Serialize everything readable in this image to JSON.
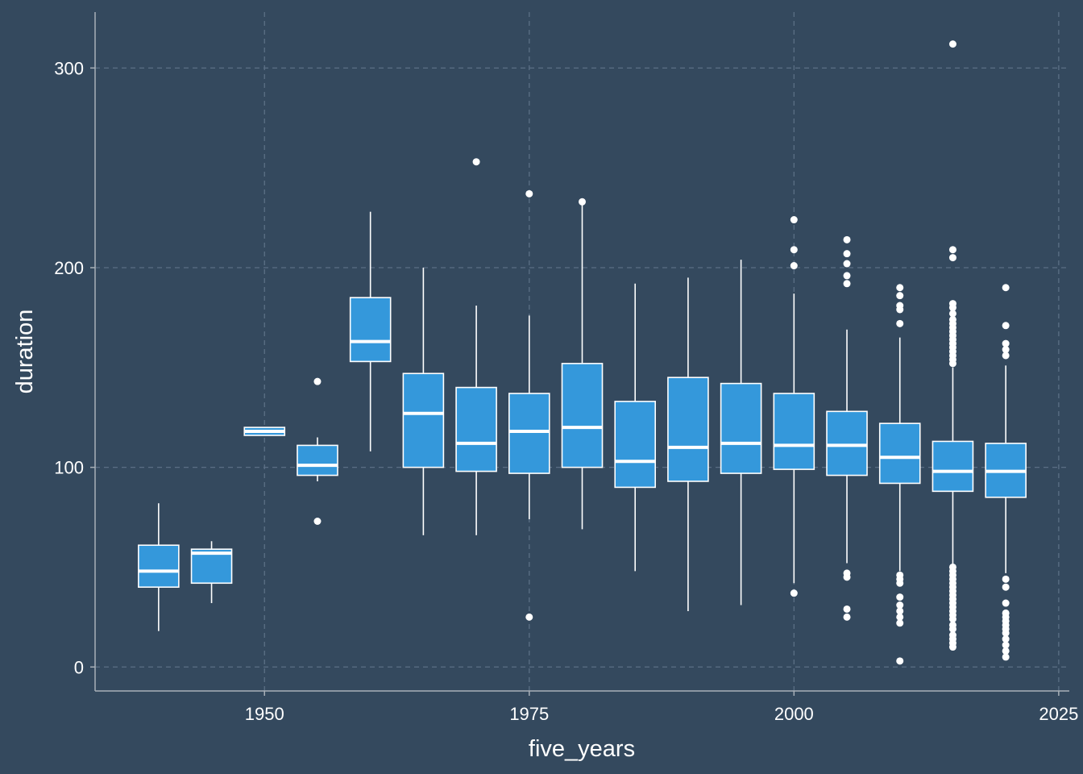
{
  "colors": {
    "background": "#34495e",
    "box_fill": "#3498db",
    "box_stroke": "#ffffff",
    "grid": "#5b6f85"
  },
  "chart_data": {
    "type": "boxplot",
    "xlabel": "five_years",
    "ylabel": "duration",
    "xlim": [
      1934,
      2026
    ],
    "ylim": [
      -12,
      328
    ],
    "xticks": [
      1950,
      1975,
      2000,
      2025
    ],
    "yticks": [
      0,
      100,
      200,
      300
    ],
    "x_tick_labels": [
      "1950",
      "1975",
      "2000",
      "2025"
    ],
    "y_tick_labels": [
      "0",
      "100",
      "200",
      "300"
    ],
    "grid": true,
    "legend": false,
    "boxes": [
      {
        "x": 1940,
        "whisker_low": 18,
        "q1": 40,
        "median": 48,
        "q3": 61,
        "whisker_high": 82,
        "outliers": []
      },
      {
        "x": 1945,
        "whisker_low": 32,
        "q1": 42,
        "median": 57,
        "q3": 59,
        "whisker_high": 63,
        "outliers": []
      },
      {
        "x": 1950,
        "whisker_low": 116,
        "q1": 116,
        "median": 118,
        "q3": 120,
        "whisker_high": 120,
        "outliers": []
      },
      {
        "x": 1955,
        "whisker_low": 93,
        "q1": 96,
        "median": 101,
        "q3": 111,
        "whisker_high": 115,
        "outliers": [
          73,
          143
        ]
      },
      {
        "x": 1960,
        "whisker_low": 108,
        "q1": 153,
        "median": 163,
        "q3": 185,
        "whisker_high": 228,
        "outliers": []
      },
      {
        "x": 1965,
        "whisker_low": 66,
        "q1": 100,
        "median": 127,
        "q3": 147,
        "whisker_high": 200,
        "outliers": []
      },
      {
        "x": 1970,
        "whisker_low": 66,
        "q1": 98,
        "median": 112,
        "q3": 140,
        "whisker_high": 181,
        "outliers": [
          253
        ]
      },
      {
        "x": 1975,
        "whisker_low": 74,
        "q1": 97,
        "median": 118,
        "q3": 137,
        "whisker_high": 176,
        "outliers": [
          25,
          237
        ]
      },
      {
        "x": 1980,
        "whisker_low": 69,
        "q1": 100,
        "median": 120,
        "q3": 152,
        "whisker_high": 232,
        "outliers": [
          233
        ]
      },
      {
        "x": 1985,
        "whisker_low": 48,
        "q1": 90,
        "median": 103,
        "q3": 133,
        "whisker_high": 192,
        "outliers": []
      },
      {
        "x": 1990,
        "whisker_low": 28,
        "q1": 93,
        "median": 110,
        "q3": 145,
        "whisker_high": 195,
        "outliers": []
      },
      {
        "x": 1995,
        "whisker_low": 31,
        "q1": 97,
        "median": 112,
        "q3": 142,
        "whisker_high": 204,
        "outliers": []
      },
      {
        "x": 2000,
        "whisker_low": 42,
        "q1": 99,
        "median": 111,
        "q3": 137,
        "whisker_high": 187,
        "outliers": [
          37,
          201,
          209,
          224
        ]
      },
      {
        "x": 2005,
        "whisker_low": 52,
        "q1": 96,
        "median": 111,
        "q3": 128,
        "whisker_high": 169,
        "outliers": [
          25,
          29,
          45,
          47,
          192,
          196,
          202,
          207,
          214
        ]
      },
      {
        "x": 2010,
        "whisker_low": 48,
        "q1": 92,
        "median": 105,
        "q3": 122,
        "whisker_high": 165,
        "outliers": [
          3,
          22,
          25,
          28,
          31,
          35,
          42,
          44,
          46,
          172,
          179,
          181,
          186,
          190
        ]
      },
      {
        "x": 2015,
        "whisker_low": 51,
        "q1": 88,
        "median": 98,
        "q3": 113,
        "whisker_high": 150,
        "outliers": [
          10,
          12,
          14,
          16,
          19,
          21,
          24,
          26,
          28,
          30,
          32,
          34,
          36,
          38,
          40,
          42,
          44,
          46,
          48,
          50,
          152,
          154,
          156,
          158,
          160,
          162,
          164,
          166,
          168,
          170,
          172,
          174,
          177,
          180,
          182,
          205,
          209,
          312
        ]
      },
      {
        "x": 2020,
        "whisker_low": 47,
        "q1": 85,
        "median": 98,
        "q3": 112,
        "whisker_high": 151,
        "outliers": [
          5,
          8,
          11,
          14,
          17,
          19,
          21,
          23,
          25,
          27,
          32,
          40,
          44,
          156,
          159,
          162,
          171,
          190
        ]
      }
    ]
  }
}
